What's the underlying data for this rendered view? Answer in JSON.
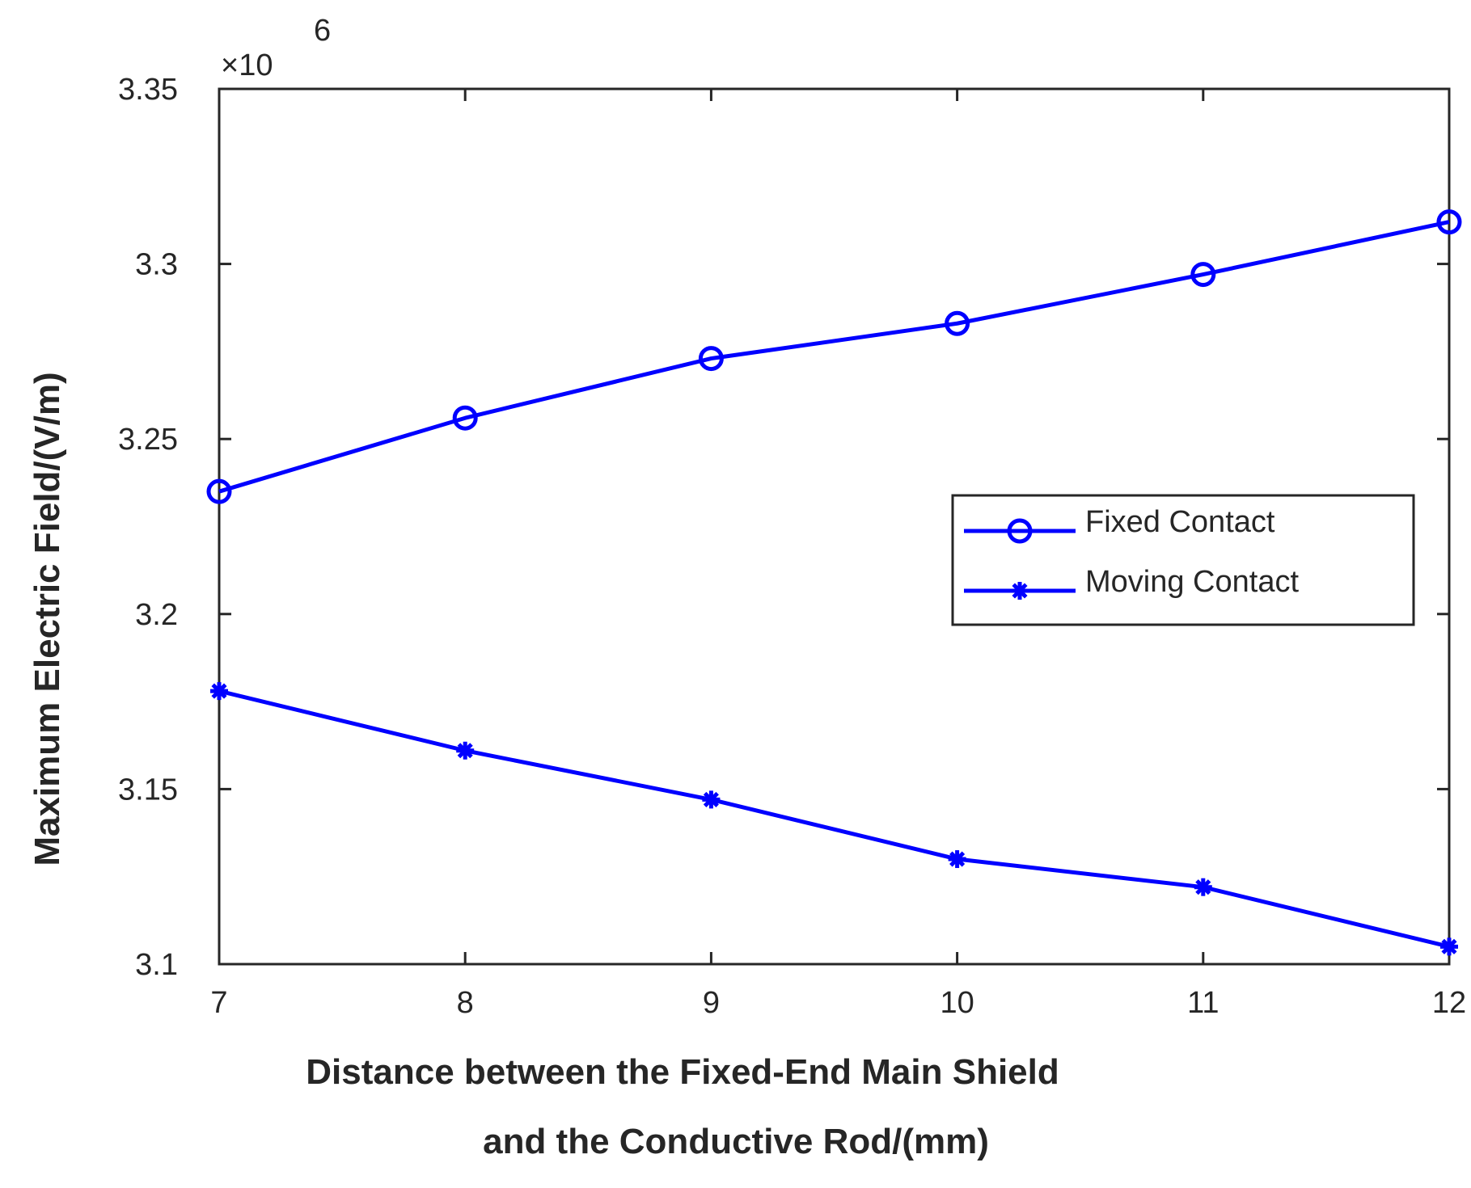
{
  "chart_data": {
    "type": "line",
    "xlabel_lines": [
      "Distance between the Fixed-End Main Shield",
      "and the Conductive Rod/(mm)"
    ],
    "ylabel": "Maximum Electric Field/(V/m)",
    "y_scale_multiplier": "×10",
    "y_scale_exponent": "6",
    "xlim": [
      7,
      12
    ],
    "ylim": [
      3.1,
      3.35
    ],
    "x_ticks": [
      "7",
      "8",
      "9",
      "10",
      "11",
      "12"
    ],
    "y_ticks": [
      "3.1",
      "3.15",
      "3.2",
      "3.25",
      "3.3",
      "3.35"
    ],
    "legend_position": "right-middle",
    "grid": false,
    "x": [
      7,
      8,
      9,
      10,
      11,
      12
    ],
    "series": [
      {
        "name": "Fixed Contact",
        "marker": "circle",
        "color": "#0000ff",
        "values": [
          3.235,
          3.256,
          3.273,
          3.283,
          3.297,
          3.312
        ]
      },
      {
        "name": "Moving Contact",
        "marker": "asterisk",
        "color": "#0000ff",
        "values": [
          3.178,
          3.161,
          3.147,
          3.13,
          3.122,
          3.105
        ]
      }
    ]
  }
}
